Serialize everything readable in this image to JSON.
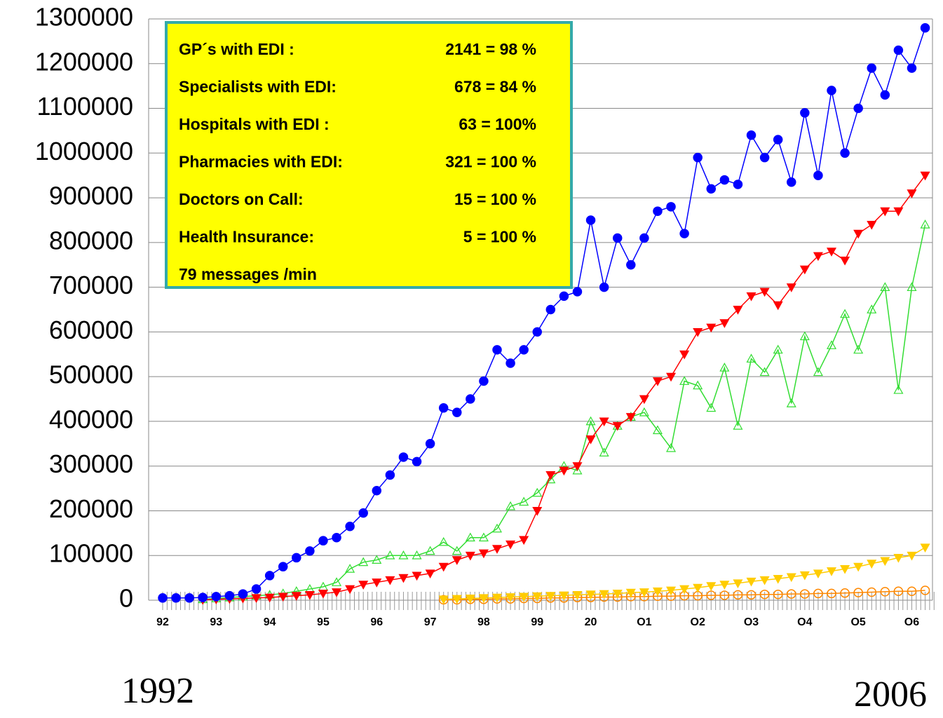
{
  "chart_data": {
    "type": "line",
    "categories": [
      "92",
      null,
      null,
      null,
      "93",
      null,
      null,
      null,
      "94",
      null,
      null,
      null,
      "95",
      null,
      null,
      null,
      "96",
      null,
      null,
      null,
      "97",
      null,
      null,
      null,
      "98",
      null,
      null,
      null,
      "99",
      null,
      null,
      null,
      "20",
      null,
      null,
      null,
      "O1",
      null,
      null,
      null,
      "O2",
      null,
      null,
      null,
      "O3",
      null,
      null,
      null,
      "O4",
      null,
      null,
      null,
      "O5",
      null,
      null,
      null,
      "O6",
      null
    ],
    "ylim": [
      0,
      1300000
    ],
    "yticks": [
      0,
      100000,
      200000,
      300000,
      400000,
      500000,
      600000,
      700000,
      800000,
      900000,
      1000000,
      1100000,
      1200000,
      1300000
    ],
    "grid": true,
    "series": [
      {
        "color": "#0000ff",
        "marker": "circle-filled",
        "values": [
          5000,
          5000,
          5000,
          6000,
          8000,
          10000,
          14000,
          25000,
          55000,
          75000,
          95000,
          110000,
          133000,
          140000,
          165000,
          195000,
          245000,
          280000,
          320000,
          310000,
          350000,
          430000,
          420000,
          450000,
          490000,
          560000,
          530000,
          560000,
          600000,
          650000,
          680000,
          690000,
          850000,
          700000,
          810000,
          750000,
          810000,
          870000,
          880000,
          820000,
          990000,
          920000,
          940000,
          930000,
          1040000,
          990000,
          1030000,
          935000,
          1090000,
          950000,
          1140000,
          1000000,
          1100000,
          1190000,
          1130000,
          1230000,
          1190000,
          1280000
        ]
      },
      {
        "color": "#ff0000",
        "marker": "triangle-down-filled",
        "values": [
          null,
          null,
          null,
          1000,
          2000,
          3000,
          4000,
          5000,
          6000,
          8000,
          10000,
          12000,
          15000,
          18000,
          25000,
          35000,
          40000,
          45000,
          50000,
          55000,
          60000,
          75000,
          90000,
          100000,
          105000,
          115000,
          125000,
          135000,
          200000,
          280000,
          290000,
          300000,
          360000,
          400000,
          390000,
          410000,
          450000,
          490000,
          500000,
          550000,
          600000,
          610000,
          620000,
          650000,
          680000,
          690000,
          660000,
          700000,
          740000,
          770000,
          780000,
          760000,
          820000,
          840000,
          870000,
          870000,
          910000,
          950000
        ]
      },
      {
        "color": "#33dd33",
        "marker": "triangle-up-open",
        "values": [
          null,
          null,
          null,
          2000,
          4000,
          6000,
          8000,
          10000,
          12000,
          15000,
          20000,
          25000,
          30000,
          40000,
          70000,
          85000,
          90000,
          100000,
          100000,
          100000,
          110000,
          130000,
          110000,
          140000,
          140000,
          160000,
          210000,
          220000,
          240000,
          270000,
          300000,
          290000,
          400000,
          330000,
          390000,
          410000,
          420000,
          380000,
          340000,
          490000,
          480000,
          430000,
          520000,
          390000,
          540000,
          510000,
          560000,
          440000,
          590000,
          510000,
          570000,
          640000,
          560000,
          650000,
          700000,
          470000,
          700000,
          840000
        ]
      },
      {
        "color": "#ffcc00",
        "marker": "triangle-down-filled",
        "values": [
          null,
          null,
          null,
          null,
          null,
          null,
          null,
          null,
          null,
          null,
          null,
          null,
          null,
          null,
          null,
          null,
          null,
          null,
          null,
          null,
          null,
          2000,
          3000,
          4000,
          5000,
          6000,
          7000,
          8000,
          9000,
          10000,
          11000,
          12000,
          13000,
          14000,
          15000,
          17000,
          18000,
          20000,
          22000,
          25000,
          28000,
          32000,
          35000,
          38000,
          42000,
          45000,
          48000,
          52000,
          56000,
          60000,
          65000,
          70000,
          75000,
          82000,
          88000,
          95000,
          100000,
          118000
        ]
      },
      {
        "color": "#ff8800",
        "marker": "circle-open",
        "values": [
          null,
          null,
          null,
          null,
          null,
          null,
          null,
          null,
          null,
          null,
          null,
          null,
          null,
          null,
          null,
          null,
          null,
          null,
          null,
          null,
          null,
          1000,
          1000,
          2000,
          2000,
          3000,
          3000,
          4000,
          4000,
          5000,
          5000,
          6000,
          6000,
          7000,
          7000,
          8000,
          8000,
          9000,
          9000,
          10000,
          10000,
          11000,
          11000,
          12000,
          12000,
          13000,
          13000,
          14000,
          14000,
          15000,
          15000,
          16000,
          17000,
          18000,
          19000,
          20000,
          20000,
          22000
        ]
      }
    ],
    "annotation": {
      "lines": [
        {
          "label": "GP´s with EDI :",
          "value": "2141 = 98 %"
        },
        {
          "label": "Specialists with EDI:",
          "value": "678 = 84 %"
        },
        {
          "label": "Hospitals with EDI :",
          "value": "63 =  100%"
        },
        {
          "label": "Pharmacies with EDI:",
          "value": "321 = 100 %"
        },
        {
          "label": "Doctors on Call:",
          "value": "15 = 100 %"
        },
        {
          "label": "Health Insurance:",
          "value": "5 =  100 %"
        },
        {
          "label": "79 messages /min",
          "value": null
        }
      ]
    },
    "start_label": "1992",
    "end_label": "2006"
  }
}
